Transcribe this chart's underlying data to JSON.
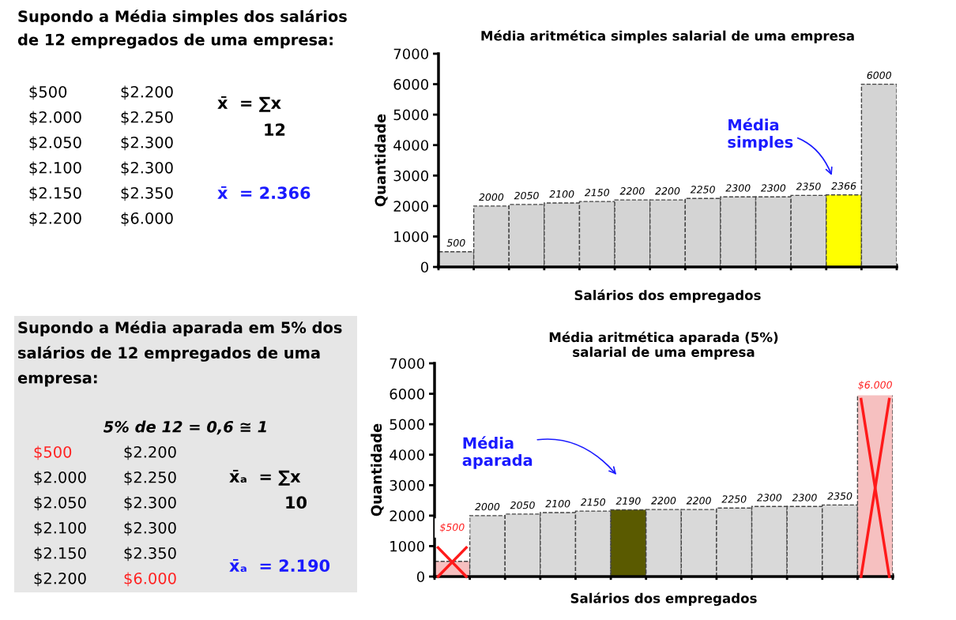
{
  "chart_data": [
    {
      "type": "bar",
      "title": "Média aritmética simples salarial de uma empresa",
      "xlabel": "Salários dos empregados",
      "ylabel": "Quantidade",
      "categories": [
        null,
        null,
        null,
        null,
        null,
        null,
        null,
        null,
        null,
        null,
        null,
        null,
        null
      ],
      "values": [
        500,
        2000,
        2050,
        2100,
        2150,
        2200,
        2200,
        2250,
        2300,
        2300,
        2350,
        2366,
        6000
      ],
      "colors": [
        "#d4d4d4",
        "#d4d4d4",
        "#d4d4d4",
        "#d4d4d4",
        "#d4d4d4",
        "#d4d4d4",
        "#d4d4d4",
        "#d4d4d4",
        "#d4d4d4",
        "#d4d4d4",
        "#d4d4d4",
        "#ffff00",
        "#d4d4d4"
      ],
      "data_labels": true,
      "ylim": [
        0,
        7000
      ],
      "yticks": [
        0,
        1000,
        2000,
        3000,
        4000,
        5000,
        6000,
        7000
      ],
      "grid": false,
      "legend": false,
      "annotations": [
        "Supondo a Média simples dos salários",
        "de 12 empregados de uma empresa:",
        "$500",
        "$2.000",
        "$2.050",
        "$2.100",
        "$2.150",
        "$2.200",
        "$2.200",
        "$2.250",
        "$2.300",
        "$2.300",
        "$2.350",
        "$6.000",
        "x̄  = ∑x",
        "12",
        "x̄  = 2.366",
        "Média\nsimples"
      ]
    },
    {
      "type": "bar",
      "title": "Média aritmética aparada (5%)\nsalarial de uma empresa",
      "xlabel": "Salários dos empregados",
      "ylabel": "Quantidade",
      "categories": [
        null,
        null,
        null,
        null,
        null,
        null,
        null,
        null,
        null,
        null,
        null,
        null,
        null
      ],
      "values": [
        500,
        2000,
        2050,
        2100,
        2150,
        2190,
        2200,
        2200,
        2250,
        2300,
        2300,
        2350,
        6000
      ],
      "colors": [
        "#f6c0c0",
        "#d9d9d9",
        "#d9d9d9",
        "#d9d9d9",
        "#d9d9d9",
        "#5a5a00",
        "#d9d9d9",
        "#d9d9d9",
        "#d9d9d9",
        "#d9d9d9",
        "#d9d9d9",
        "#d9d9d9",
        "#f6c0c0"
      ],
      "value_labels": [
        "$500",
        "2000",
        "2050",
        "2100",
        "2150",
        "2190",
        "2200",
        "2200",
        "2250",
        "2300",
        "2300",
        "2350",
        "$6.000"
      ],
      "ylim": [
        0,
        7000
      ],
      "yticks": [
        0,
        1000,
        2000,
        3000,
        4000,
        5000,
        6000,
        7000
      ],
      "grid": false,
      "legend": false,
      "annotations": [
        "Supondo a Média aparada em 5% dos",
        "salários de 12 empregados de uma",
        "empresa:",
        "5% de 12 = 0,6 ≅ 1",
        "$500",
        "$2.000",
        "$2.050",
        "$2.100",
        "$2.150",
        "$2.200",
        "$2.200",
        "$2.250",
        "$2.300",
        "$2.300",
        "$2.350",
        "$6.000",
        "x̄ₐ  = ∑x",
        "10",
        "x̄ₐ  = 2.190",
        "Média\naparada"
      ]
    }
  ]
}
